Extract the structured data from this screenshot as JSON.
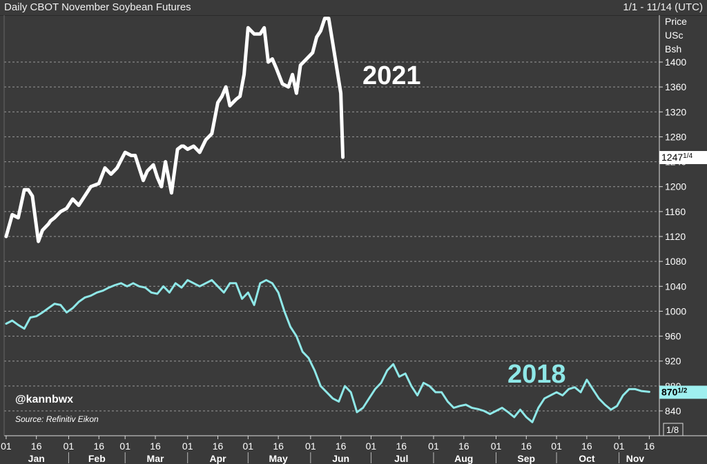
{
  "header": {
    "title": "Daily CBOT November Soybean Futures",
    "range": "1/1 - 11/14 (UTC)"
  },
  "axis_unit": [
    "Price",
    "USc",
    "Bsh"
  ],
  "annotations": {
    "handle": "@kannbwx",
    "source": "Source: Refinitiv Eikon",
    "scale_label": "1/8"
  },
  "last_value_tags": [
    {
      "series": "2021",
      "whole": "1247",
      "frac": "1/4",
      "color": "#ffffff"
    },
    {
      "series": "2018",
      "whole": "870",
      "frac": "1/2",
      "color": "#9ff0f0"
    }
  ],
  "colors": {
    "background": "#3a3a3a",
    "grid": "#9a9a9a",
    "series_2021": "#ffffff",
    "series_2018": "#8fe8e8"
  },
  "chart_data": {
    "type": "line",
    "title": "Daily CBOT November Soybean Futures",
    "ylabel": "Price USc Bsh",
    "xlabel": "",
    "ylim": [
      800,
      1480
    ],
    "y_ticks": [
      840,
      880,
      920,
      960,
      1000,
      1040,
      1080,
      1120,
      1160,
      1200,
      1240,
      1280,
      1320,
      1360,
      1400
    ],
    "x_day_ticks": [
      {
        "day": 0,
        "label": "01"
      },
      {
        "day": 15,
        "label": "16"
      },
      {
        "day": 31,
        "label": "01"
      },
      {
        "day": 46,
        "label": "16"
      },
      {
        "day": 59,
        "label": "01"
      },
      {
        "day": 74,
        "label": "16"
      },
      {
        "day": 90,
        "label": "01"
      },
      {
        "day": 105,
        "label": "16"
      },
      {
        "day": 120,
        "label": "01"
      },
      {
        "day": 135,
        "label": "16"
      },
      {
        "day": 151,
        "label": "01"
      },
      {
        "day": 166,
        "label": "16"
      },
      {
        "day": 181,
        "label": "01"
      },
      {
        "day": 196,
        "label": "16"
      },
      {
        "day": 212,
        "label": "01"
      },
      {
        "day": 227,
        "label": "16"
      },
      {
        "day": 243,
        "label": "01"
      },
      {
        "day": 258,
        "label": "16"
      },
      {
        "day": 273,
        "label": "01"
      },
      {
        "day": 288,
        "label": "16"
      },
      {
        "day": 304,
        "label": "01"
      },
      {
        "day": 319,
        "label": "16"
      }
    ],
    "months": [
      {
        "day": 15,
        "label": "Jan"
      },
      {
        "day": 45,
        "label": "Feb"
      },
      {
        "day": 74,
        "label": "Mar"
      },
      {
        "day": 105,
        "label": "Apr"
      },
      {
        "day": 135,
        "label": "May"
      },
      {
        "day": 166,
        "label": "Jun"
      },
      {
        "day": 196,
        "label": "Jul"
      },
      {
        "day": 227,
        "label": "Aug"
      },
      {
        "day": 258,
        "label": "Sep"
      },
      {
        "day": 288,
        "label": "Oct"
      },
      {
        "day": 312,
        "label": "Nov"
      }
    ],
    "series": [
      {
        "name": "2021",
        "x": [
          0,
          3,
          6,
          9,
          11,
          13,
          16,
          18,
          21,
          22,
          24,
          27,
          30,
          33,
          36,
          39,
          42,
          46,
          49,
          52,
          55,
          59,
          62,
          64,
          66,
          68,
          70,
          73,
          75,
          77,
          79,
          82,
          85,
          87,
          88,
          90,
          93,
          96,
          99,
          102,
          105,
          107,
          109,
          111,
          114,
          116,
          118,
          120,
          123,
          126,
          128,
          130,
          132,
          134,
          137,
          140,
          142,
          144,
          146,
          149,
          152,
          154,
          156,
          158,
          160,
          162,
          164,
          166,
          167
        ],
        "y": [
          1120,
          1155,
          1150,
          1195,
          1195,
          1185,
          1112,
          1130,
          1140,
          1145,
          1150,
          1160,
          1165,
          1180,
          1170,
          1185,
          1200,
          1205,
          1230,
          1220,
          1230,
          1255,
          1250,
          1250,
          1230,
          1210,
          1225,
          1235,
          1215,
          1200,
          1240,
          1190,
          1260,
          1265,
          1265,
          1260,
          1265,
          1255,
          1275,
          1285,
          1335,
          1345,
          1360,
          1330,
          1340,
          1345,
          1380,
          1455,
          1445,
          1445,
          1455,
          1400,
          1405,
          1390,
          1365,
          1360,
          1380,
          1350,
          1395,
          1405,
          1415,
          1440,
          1450,
          1470,
          1470,
          1430,
          1390,
          1350,
          1247.25
        ]
      },
      {
        "name": "2018",
        "x": [
          0,
          3,
          6,
          9,
          12,
          15,
          18,
          21,
          24,
          27,
          30,
          33,
          36,
          39,
          42,
          45,
          48,
          51,
          54,
          57,
          60,
          63,
          66,
          69,
          72,
          75,
          78,
          81,
          84,
          87,
          90,
          93,
          96,
          99,
          102,
          105,
          108,
          111,
          114,
          117,
          120,
          123,
          126,
          129,
          132,
          135,
          138,
          141,
          144,
          147,
          150,
          153,
          156,
          159,
          162,
          165,
          168,
          171,
          174,
          177,
          180,
          183,
          186,
          189,
          192,
          195,
          198,
          201,
          204,
          207,
          210,
          213,
          216,
          219,
          222,
          225,
          228,
          231,
          234,
          237,
          240,
          243,
          246,
          249,
          252,
          255,
          258,
          261,
          264,
          267,
          270,
          273,
          276,
          279,
          282,
          285,
          288,
          291,
          294,
          297,
          300,
          303,
          306,
          309,
          312,
          315,
          319
        ],
        "y": [
          980,
          985,
          978,
          972,
          990,
          992,
          998,
          1005,
          1012,
          1010,
          998,
          1005,
          1015,
          1022,
          1025,
          1030,
          1033,
          1038,
          1042,
          1045,
          1040,
          1045,
          1040,
          1038,
          1030,
          1028,
          1040,
          1030,
          1045,
          1038,
          1050,
          1045,
          1040,
          1045,
          1050,
          1040,
          1030,
          1045,
          1045,
          1020,
          1030,
          1010,
          1045,
          1050,
          1045,
          1030,
          1000,
          975,
          960,
          935,
          925,
          905,
          880,
          870,
          860,
          855,
          880,
          870,
          838,
          845,
          860,
          875,
          885,
          905,
          915,
          895,
          900,
          880,
          865,
          885,
          880,
          870,
          870,
          855,
          845,
          848,
          850,
          845,
          843,
          840,
          835,
          840,
          845,
          838,
          830,
          842,
          830,
          822,
          845,
          860,
          865,
          870,
          865,
          875,
          878,
          870,
          890,
          875,
          860,
          850,
          842,
          848,
          865,
          875,
          875,
          872,
          870.5
        ]
      }
    ],
    "last_values": [
      1247.25,
      870.5
    ]
  }
}
